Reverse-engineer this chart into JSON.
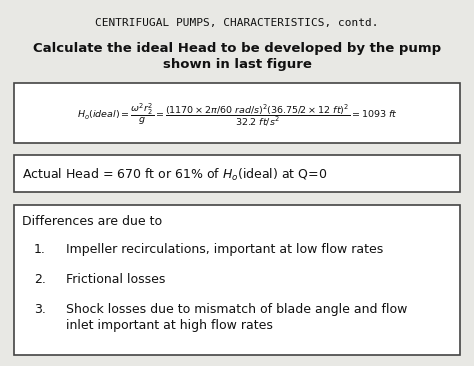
{
  "title": "CENTRIFUGAL PUMPS, CHARACTERISTICS, contd.",
  "subtitle1": "Calculate the ideal Head to be developed by the pump",
  "subtitle2": "shown in last figure",
  "box2_text": "Actual Head = 670 ft or 61% of H",
  "box2_sub": "o",
  "box2_rest": "(ideal) at Q=0",
  "box3_header": "Differences are due to",
  "item1": "Impeller recirculations, important at low flow rates",
  "item2": "Frictional losses",
  "item3a": "Shock losses due to mismatch of blade angle and flow",
  "item3b": "inlet important at high flow rates",
  "bg_color": "#e8e8e4",
  "box_bg": "#ffffff",
  "box_edge": "#444444",
  "text_color": "#111111"
}
